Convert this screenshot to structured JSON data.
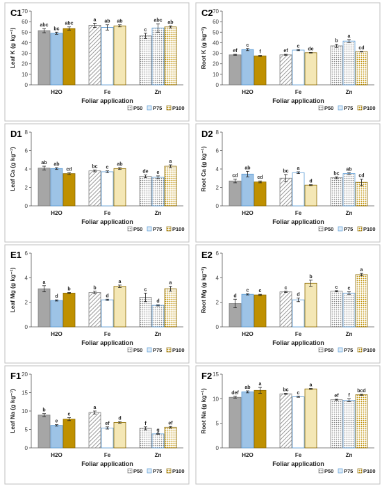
{
  "chart_data": [
    {
      "type": "bar",
      "panel_label": "C1",
      "ylabel": "Leaf K (g kg⁻¹)",
      "xlabel": "Foliar application",
      "categories": [
        "H2O",
        "Fe",
        "Zn"
      ],
      "ylim": [
        0,
        70
      ],
      "yticks": [
        0,
        10,
        20,
        30,
        40,
        50,
        60,
        70
      ],
      "series": [
        {
          "name": "P50",
          "values": [
            51.5,
            56.5,
            46.5
          ],
          "errors": [
            2,
            2,
            2.5
          ],
          "letters": [
            "abc",
            "a",
            "c"
          ]
        },
        {
          "name": "P75",
          "values": [
            49,
            54.5,
            54
          ],
          "errors": [
            1,
            2.5,
            4
          ],
          "letters": [
            "bc",
            "ab",
            "abc"
          ]
        },
        {
          "name": "P100",
          "values": [
            53.5,
            56,
            55
          ],
          "errors": [
            1.5,
            1,
            1
          ],
          "letters": [
            "abc",
            "ab",
            "ab"
          ]
        }
      ]
    },
    {
      "type": "bar",
      "panel_label": "C2",
      "ylabel": "Root K (g kg⁻¹)",
      "xlabel": "Foliar application",
      "categories": [
        "H2O",
        "Fe",
        "Zn"
      ],
      "ylim": [
        0,
        70
      ],
      "yticks": [
        0,
        10,
        20,
        30,
        40,
        50,
        60,
        70
      ],
      "series": [
        {
          "name": "P50",
          "values": [
            28.5,
            28.5,
            37
          ],
          "errors": [
            0.5,
            0.5,
            1.5
          ],
          "letters": [
            "ef",
            "ef",
            "b"
          ]
        },
        {
          "name": "P75",
          "values": [
            33.5,
            33,
            41.5
          ],
          "errors": [
            1,
            0.5,
            1.5
          ],
          "letters": [
            "c",
            "c",
            "a"
          ]
        },
        {
          "name": "P100",
          "values": [
            27.5,
            30.5,
            31.5
          ],
          "errors": [
            0.5,
            0.3,
            0.3
          ],
          "letters": [
            "f",
            "de",
            "cd"
          ]
        }
      ]
    },
    {
      "type": "bar",
      "panel_label": "D1",
      "ylabel": "Leaf Ca (g kg⁻¹)",
      "xlabel": "Foliar application",
      "categories": [
        "H2O",
        "Fe",
        "Zn"
      ],
      "ylim": [
        0,
        8
      ],
      "yticks": [
        0,
        2,
        4,
        6,
        8
      ],
      "series": [
        {
          "name": "P50",
          "values": [
            4.1,
            3.8,
            3.2
          ],
          "errors": [
            0.2,
            0.1,
            0.15
          ],
          "letters": [
            "ab",
            "bc",
            "de"
          ]
        },
        {
          "name": "P75",
          "values": [
            4.05,
            3.7,
            3.1
          ],
          "errors": [
            0.1,
            0.1,
            0.15
          ],
          "letters": [
            "ab",
            "c",
            "e"
          ]
        },
        {
          "name": "P100",
          "values": [
            3.5,
            4.05,
            4.3
          ],
          "errors": [
            0.1,
            0.1,
            0.15
          ],
          "letters": [
            "cd",
            "ab",
            "a"
          ]
        }
      ]
    },
    {
      "type": "bar",
      "panel_label": "D2",
      "ylabel": "Root Ca (g kg⁻¹)",
      "xlabel": "Foliar application",
      "categories": [
        "H2O",
        "Fe",
        "Zn"
      ],
      "ylim": [
        0,
        8
      ],
      "yticks": [
        0,
        2,
        4,
        6,
        8
      ],
      "series": [
        {
          "name": "P50",
          "values": [
            2.7,
            3.0,
            3.05
          ],
          "errors": [
            0.2,
            0.4,
            0.1
          ],
          "letters": [
            "cd",
            "bc",
            "bc"
          ]
        },
        {
          "name": "P75",
          "values": [
            3.45,
            3.6,
            3.5
          ],
          "errors": [
            0.3,
            0.1,
            0.1
          ],
          "letters": [
            "ab",
            "a",
            "ab"
          ]
        },
        {
          "name": "P100",
          "values": [
            2.6,
            2.25,
            2.55
          ],
          "errors": [
            0.1,
            0.05,
            0.35
          ],
          "letters": [
            "cd",
            "d",
            "cd"
          ]
        }
      ]
    },
    {
      "type": "bar",
      "panel_label": "E1",
      "ylabel": "Leaf Mg (g kg⁻¹)",
      "xlabel": "Foliar application",
      "categories": [
        "H2O",
        "Fe",
        "Zn"
      ],
      "ylim": [
        0,
        6
      ],
      "yticks": [
        0,
        2,
        4,
        6
      ],
      "series": [
        {
          "name": "P50",
          "values": [
            3.1,
            2.8,
            2.4
          ],
          "errors": [
            0.25,
            0.1,
            0.35
          ],
          "letters": [
            "a",
            "b",
            "c"
          ]
        },
        {
          "name": "P75",
          "values": [
            2.15,
            2.2,
            1.75
          ],
          "errors": [
            0.05,
            0.05,
            0.05
          ],
          "letters": [
            "d",
            "d",
            "d"
          ]
        },
        {
          "name": "P100",
          "values": [
            2.75,
            3.3,
            3.1
          ],
          "errors": [
            0.05,
            0.1,
            0.2
          ],
          "letters": [
            "b",
            "a",
            "a"
          ]
        }
      ]
    },
    {
      "type": "bar",
      "panel_label": "E2",
      "ylabel": "Root Mg (g kg⁻¹)",
      "xlabel": "Foliar application",
      "categories": [
        "H2O",
        "Fe",
        "Zn"
      ],
      "ylim": [
        0,
        6
      ],
      "yticks": [
        0,
        2,
        4,
        6
      ],
      "series": [
        {
          "name": "P50",
          "values": [
            1.9,
            2.85,
            2.9
          ],
          "errors": [
            0.35,
            0.05,
            0.05
          ],
          "letters": [
            "d",
            "c",
            "c"
          ]
        },
        {
          "name": "P75",
          "values": [
            2.65,
            2.2,
            2.75
          ],
          "errors": [
            0.05,
            0.15,
            0.1
          ],
          "letters": [
            "c",
            "d",
            "c"
          ]
        },
        {
          "name": "P100",
          "values": [
            2.6,
            3.55,
            4.25
          ],
          "errors": [
            0.05,
            0.25,
            0.1
          ],
          "letters": [
            "c",
            "b",
            "a"
          ]
        }
      ]
    },
    {
      "type": "bar",
      "panel_label": "F1",
      "ylabel": "Leaf Na (g kg⁻¹)",
      "xlabel": "Foliar application",
      "categories": [
        "H2O",
        "Fe",
        "Zn"
      ],
      "ylim": [
        0,
        20
      ],
      "yticks": [
        0,
        5,
        10,
        15,
        20
      ],
      "series": [
        {
          "name": "P50",
          "values": [
            8.9,
            9.6,
            5.3
          ],
          "errors": [
            0.4,
            0.4,
            0.4
          ],
          "letters": [
            "b",
            "a",
            "f"
          ]
        },
        {
          "name": "P75",
          "values": [
            6.1,
            5.4,
            3.8
          ],
          "errors": [
            0.2,
            0.3,
            0.1
          ],
          "letters": [
            "e",
            "ef",
            "g"
          ]
        },
        {
          "name": "P100",
          "values": [
            7.8,
            6.9,
            5.6
          ],
          "errors": [
            0.4,
            0.2,
            0.2
          ],
          "letters": [
            "c",
            "d",
            "ef"
          ]
        }
      ]
    },
    {
      "type": "bar",
      "panel_label": "F2",
      "ylabel": "Root Na (g kg⁻¹)",
      "xlabel": "Foliar application",
      "categories": [
        "H2O",
        "Fe",
        "Zn"
      ],
      "ylim": [
        0,
        15
      ],
      "yticks": [
        0,
        5,
        10,
        15
      ],
      "series": [
        {
          "name": "P50",
          "values": [
            10.3,
            11.0,
            9.8
          ],
          "errors": [
            0.2,
            0.1,
            0.1
          ],
          "letters": [
            "def",
            "bc",
            "ef"
          ]
        },
        {
          "name": "P75",
          "values": [
            11.4,
            10.4,
            9.7
          ],
          "errors": [
            0.2,
            0.1,
            0.3
          ],
          "letters": [
            "ab",
            "c",
            "f"
          ]
        },
        {
          "name": "P100",
          "values": [
            11.7,
            12.0,
            10.8
          ],
          "errors": [
            0.6,
            0.1,
            0.1
          ],
          "letters": [
            "a",
            "a",
            "bcd"
          ]
        }
      ]
    }
  ],
  "legend": {
    "entries": [
      {
        "label": "P50",
        "pattern": "diagonal-gray"
      },
      {
        "label": "P75",
        "pattern": "light-blue"
      },
      {
        "label": "P100",
        "pattern": "dotted-gold"
      }
    ]
  },
  "colors": {
    "p50_fill": "#a6a6a6",
    "p75_fill": "#dbeaf7",
    "p100_fill": "#bf9000",
    "frame": "#bfbfbf"
  }
}
